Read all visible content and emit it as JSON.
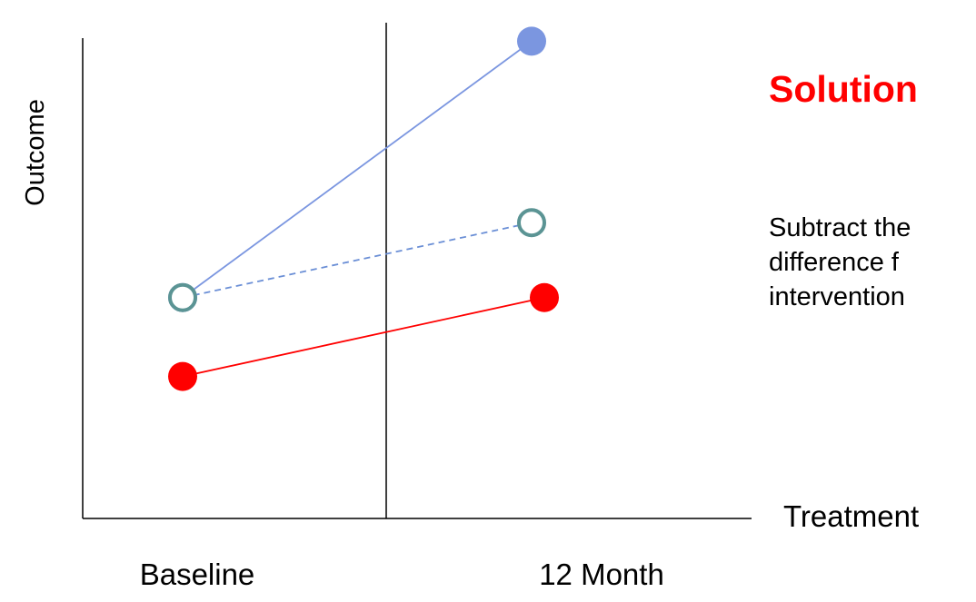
{
  "chart_data": {
    "type": "line",
    "categories": [
      "Baseline",
      "12 Month"
    ],
    "ylabel": "Outcome",
    "xlabel": "",
    "series": [
      {
        "name": "Treatment",
        "values": [
          1.6,
          3.6
        ],
        "color": "#ff0000",
        "marker": "filled",
        "line_style": "solid"
      },
      {
        "values": [
          3.6,
          10.1
        ],
        "color": "#7b96e0",
        "line_color": "#7b96e0",
        "marker": "filled",
        "line_style": "solid"
      },
      {
        "values": [
          3.6,
          5.5
        ],
        "color": "#5b9494",
        "line_color": "#6b8fd6",
        "marker": "hollow",
        "line_style": "dashed"
      }
    ],
    "ylim": [
      -2,
      10.5
    ],
    "grid": false,
    "vertical_divider": true
  },
  "side_panel": {
    "title": "Solution",
    "body_lines": [
      "Subtract the",
      "difference f",
      "intervention"
    ]
  },
  "legend": {
    "label": "Treatment"
  },
  "colors": {
    "accent": "#ff0000",
    "blue_series": "#7b96e0",
    "teal_marker": "#5b9494"
  }
}
